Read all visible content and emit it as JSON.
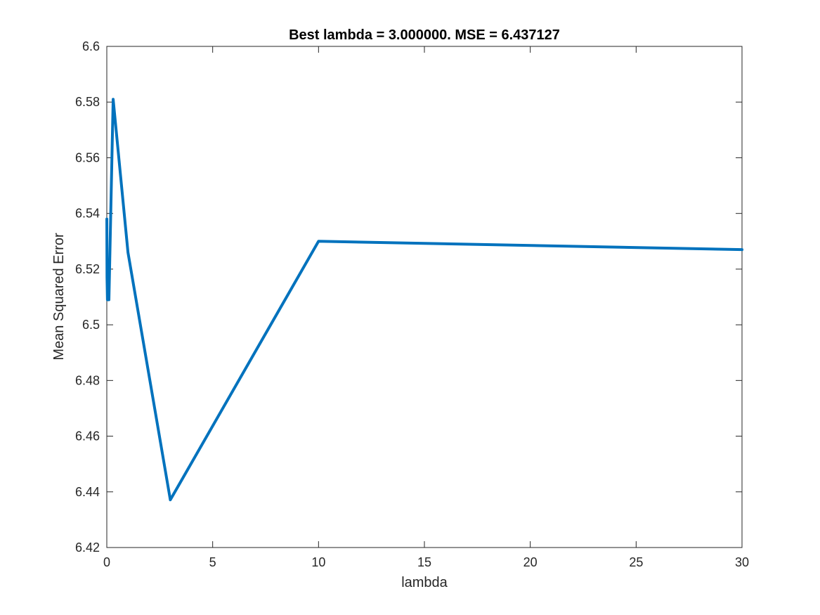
{
  "chart_data": {
    "type": "line",
    "title": "Best lambda = 3.000000. MSE = 6.437127",
    "xlabel": "lambda",
    "ylabel": "Mean Squared Error",
    "xlim": [
      0,
      30
    ],
    "ylim": [
      6.42,
      6.6
    ],
    "xticks": [
      0,
      5,
      10,
      15,
      20,
      25,
      30
    ],
    "yticks": [
      6.42,
      6.44,
      6.46,
      6.48,
      6.5,
      6.52,
      6.54,
      6.56,
      6.58,
      6.6
    ],
    "xtick_labels": [
      "0",
      "5",
      "10",
      "15",
      "20",
      "25",
      "30"
    ],
    "ytick_labels": [
      "6.42",
      "6.44",
      "6.46",
      "6.48",
      "6.5",
      "6.52",
      "6.54",
      "6.56",
      "6.58",
      "6.6"
    ],
    "grid": false,
    "box": true,
    "series": [
      {
        "color": "#0072BD",
        "x": [
          0.001,
          0.01,
          0.03,
          0.1,
          0.3,
          1,
          3,
          10,
          30
        ],
        "y": [
          6.538,
          6.517,
          6.509,
          6.509,
          6.581,
          6.526,
          6.437127,
          6.53,
          6.527
        ]
      }
    ]
  }
}
